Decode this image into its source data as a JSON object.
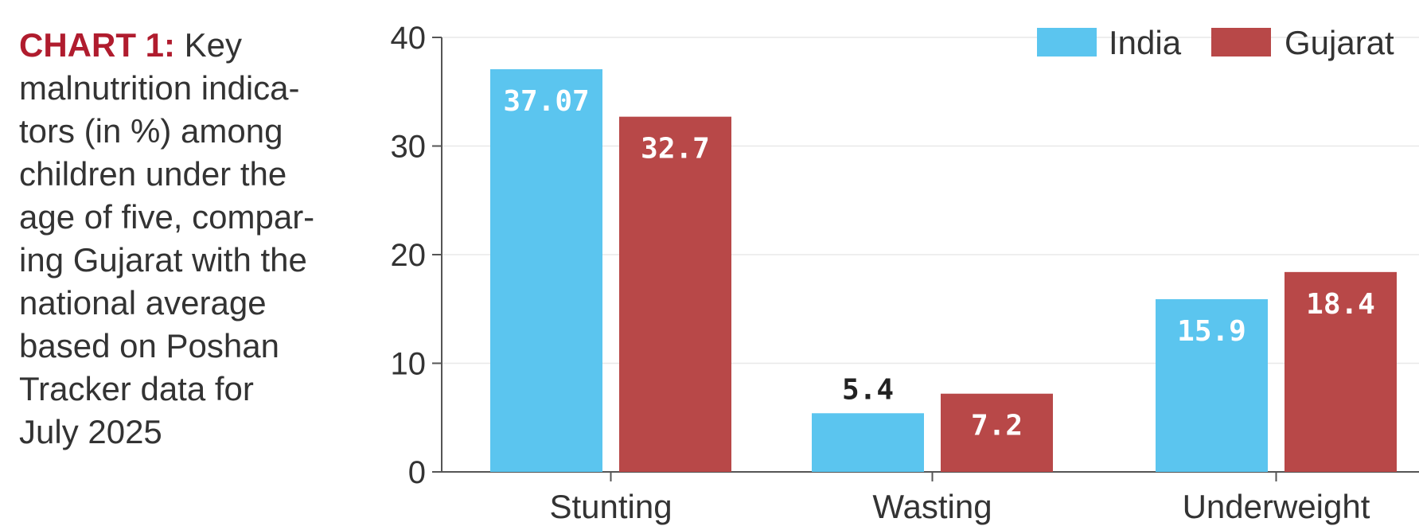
{
  "caption": {
    "label": "CHART 1:",
    "lines": [
      "Key",
      "malnutrition indica-",
      "tors (in %) among",
      "children under the",
      "age of five, compar-",
      "ing Gujarat with the",
      "national average",
      "based on Poshan",
      "Tracker data for",
      "July 2025"
    ]
  },
  "colors": {
    "caption_label": "#b01c2e",
    "india": "#5bc5ef",
    "gujarat": "#b84848",
    "label_on_bar": "#ffffff",
    "label_above_bar": "#222222"
  },
  "chart_data": {
    "type": "bar",
    "categories": [
      "Stunting",
      "Wasting",
      "Underweight"
    ],
    "series": [
      {
        "name": "India",
        "values": [
          37.07,
          5.4,
          15.9
        ],
        "labels": [
          "37.07",
          "5.4",
          "15.9"
        ]
      },
      {
        "name": "Gujarat",
        "values": [
          32.7,
          7.2,
          18.4
        ],
        "labels": [
          "32.7",
          "7.2",
          "18.4"
        ]
      }
    ],
    "ylim": [
      0,
      40
    ],
    "yticks": [
      "0",
      "10",
      "20",
      "30",
      "40"
    ],
    "grid": true,
    "legend_position": "top-right",
    "title": "",
    "xlabel": "",
    "ylabel": ""
  }
}
